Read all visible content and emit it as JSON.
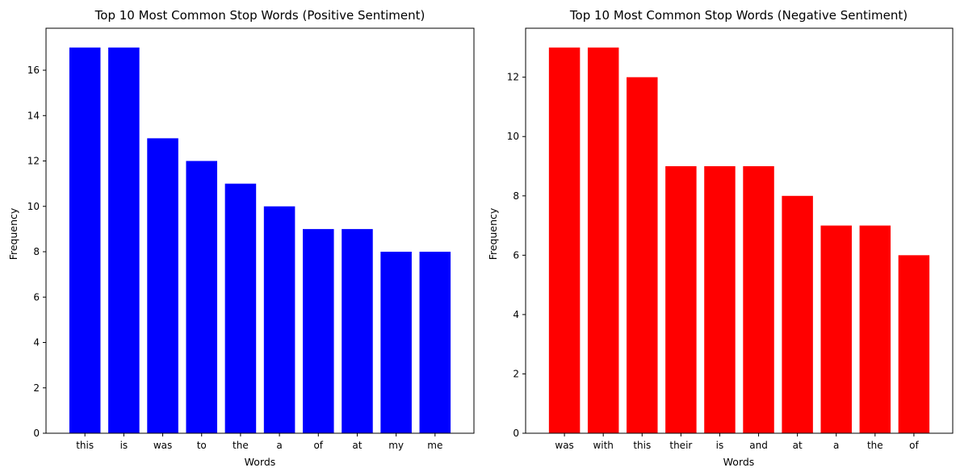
{
  "chart_data": [
    {
      "type": "bar",
      "title": "Top 10 Most Common Stop Words (Positive Sentiment)",
      "xlabel": "Words",
      "ylabel": "Frequency",
      "categories": [
        "this",
        "is",
        "was",
        "to",
        "the",
        "a",
        "of",
        "at",
        "my",
        "me"
      ],
      "values": [
        17,
        17,
        13,
        12,
        11,
        10,
        9,
        9,
        8,
        8
      ],
      "ylim": [
        0,
        17.85
      ],
      "yticks": [
        "0",
        "2",
        "4",
        "6",
        "8",
        "10",
        "12",
        "14",
        "16"
      ],
      "color": "#0000ff",
      "grid": false
    },
    {
      "type": "bar",
      "title": "Top 10 Most Common Stop Words (Negative Sentiment)",
      "xlabel": "Words",
      "ylabel": "Frequency",
      "categories": [
        "was",
        "with",
        "this",
        "their",
        "is",
        "and",
        "at",
        "a",
        "the",
        "of"
      ],
      "values": [
        13,
        13,
        12,
        9,
        9,
        9,
        8,
        7,
        7,
        6
      ],
      "ylim": [
        0,
        13.65
      ],
      "yticks": [
        "0",
        "2",
        "4",
        "6",
        "8",
        "10",
        "12"
      ],
      "color": "#ff0000",
      "grid": false
    }
  ]
}
